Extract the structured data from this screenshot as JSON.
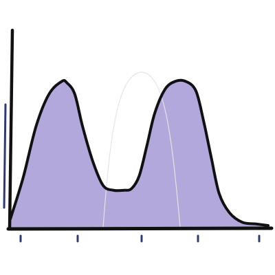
{
  "chart_data": {
    "type": "area",
    "title": "",
    "xlabel": "",
    "ylabel": "",
    "grid": false,
    "x_tick_count": 5,
    "xlim": [
      0,
      1
    ],
    "ylim": [
      0,
      1
    ],
    "series": [
      {
        "x": [
          0.0,
          0.05,
          0.1,
          0.15,
          0.2,
          0.22,
          0.25,
          0.28,
          0.32,
          0.36,
          0.4,
          0.44,
          0.47,
          0.5,
          0.53,
          0.56,
          0.6,
          0.64,
          0.68,
          0.72,
          0.75,
          0.78,
          0.81,
          0.85,
          0.9,
          0.95,
          1.0
        ],
        "y": [
          0.04,
          0.3,
          0.62,
          0.82,
          0.9,
          0.89,
          0.82,
          0.62,
          0.4,
          0.25,
          0.22,
          0.22,
          0.23,
          0.31,
          0.5,
          0.7,
          0.85,
          0.9,
          0.9,
          0.84,
          0.65,
          0.42,
          0.2,
          0.08,
          0.02,
          0.01,
          0.0
        ],
        "color": "#b3a8dc"
      }
    ],
    "colors": {
      "fill": "#b3a8dc",
      "outline": "#111111",
      "axis": "#111111",
      "ticks": "#2f3a73",
      "left_accent": "#2f3a73",
      "sketch_lines": "#e4e4e4"
    }
  }
}
